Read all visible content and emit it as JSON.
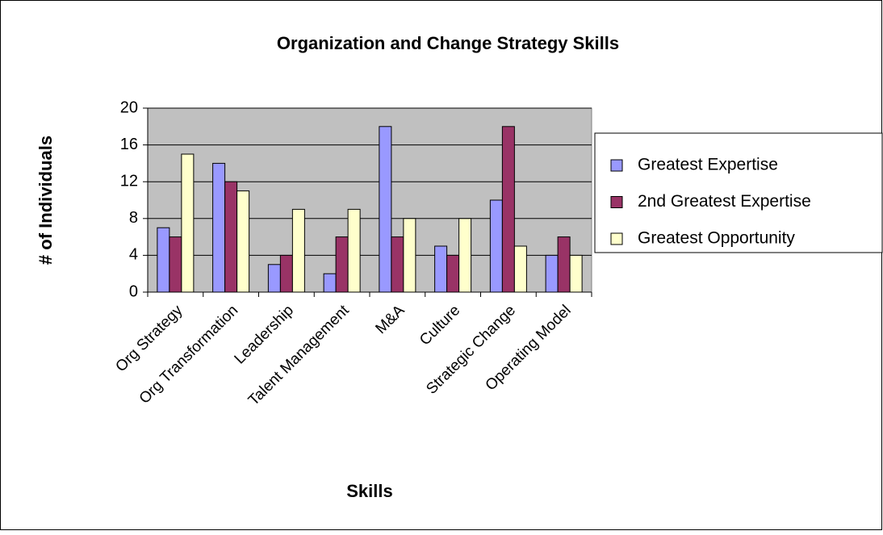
{
  "chart_data": {
    "type": "bar",
    "title": "Organization and Change Strategy Skills",
    "x_label": "Skills",
    "y_label": "# of Individuals",
    "categories": [
      "Org Strategy",
      "Org Transformation",
      "Leadership",
      "Talent Management",
      "M&A",
      "Culture",
      "Strategic Change",
      "Operating Model"
    ],
    "series": [
      {
        "name": "Greatest Expertise",
        "color": "#9999ff",
        "values": [
          7,
          14,
          3,
          2,
          18,
          5,
          10,
          4
        ]
      },
      {
        "name": "2nd Greatest Expertise",
        "color": "#993366",
        "values": [
          6,
          12,
          4,
          6,
          6,
          4,
          18,
          6
        ]
      },
      {
        "name": "Greatest Opportunity",
        "color": "#ffffcc",
        "values": [
          15,
          11,
          9,
          9,
          8,
          8,
          5,
          4
        ]
      }
    ],
    "ylim": [
      0,
      20
    ],
    "yticks": [
      0,
      4,
      8,
      12,
      16,
      20
    ],
    "grid": true,
    "legend": "right"
  }
}
